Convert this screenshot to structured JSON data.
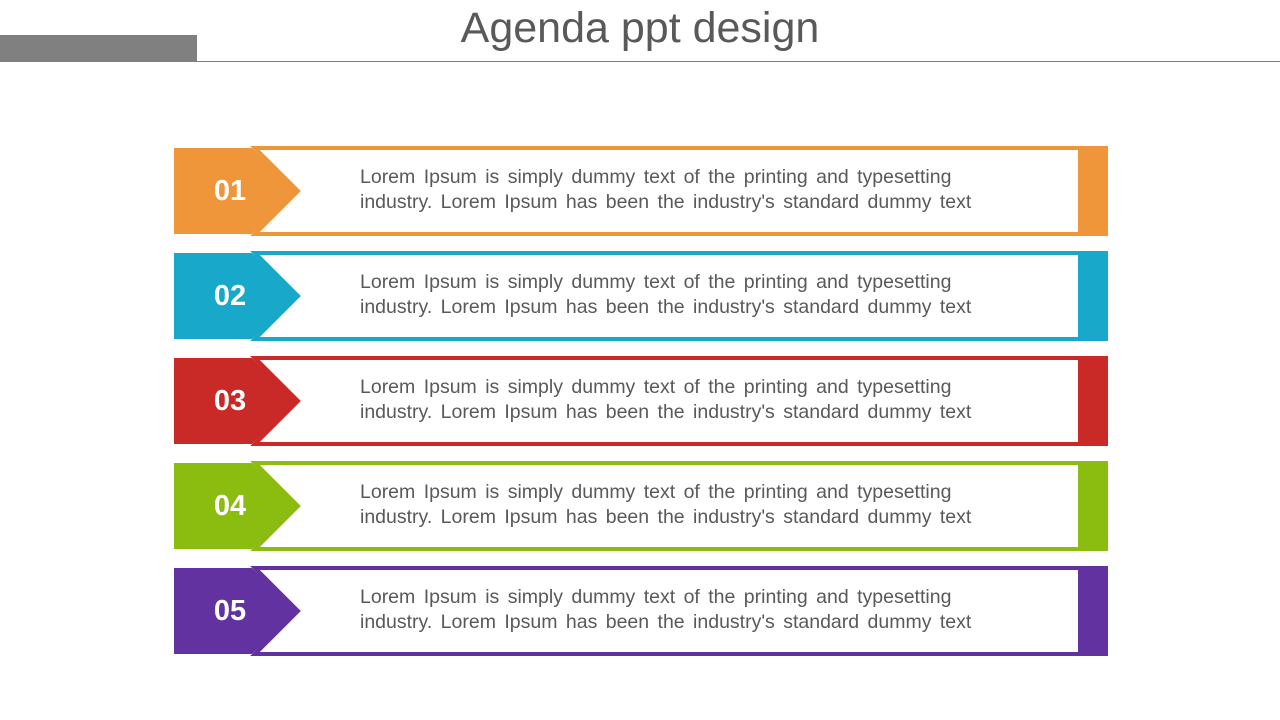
{
  "title": "Agenda ppt design",
  "items": [
    {
      "number": "01",
      "line1": "Lorem Ipsum  is simply  dummy  text of the printing  and typesetting",
      "line2": "industry.  Lorem Ipsum  has been  the industry's standard  dummy  text",
      "color": "#f0963a"
    },
    {
      "number": "02",
      "line1": "Lorem Ipsum  is simply  dummy  text of the printing  and typesetting",
      "line2": "industry.  Lorem Ipsum  has been  the industry's standard  dummy  text",
      "color": "#17a8ca"
    },
    {
      "number": "03",
      "line1": "Lorem Ipsum  is simply  dummy  text of the printing  and typesetting",
      "line2": "industry.  Lorem Ipsum  has been  the industry's standard  dummy  text",
      "color": "#c92a27"
    },
    {
      "number": "04",
      "line1": "Lorem Ipsum  is simply  dummy  text of the printing  and typesetting",
      "line2": "industry.  Lorem Ipsum  has been  the industry's standard  dummy  text",
      "color": "#8bbc10"
    },
    {
      "number": "05",
      "line1": "Lorem Ipsum  is simply  dummy  text of the printing  and typesetting",
      "line2": "industry.  Lorem Ipsum  has been  the industry's standard  dummy  text",
      "color": "#6233a0"
    }
  ]
}
